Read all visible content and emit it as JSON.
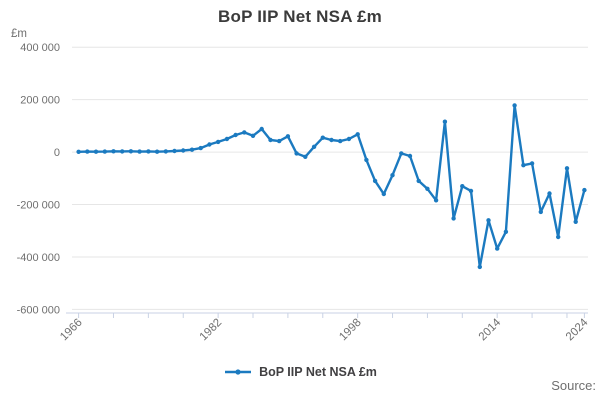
{
  "title": "BoP IIP Net NSA £m",
  "legend": {
    "label": "BoP IIP Net NSA £m"
  },
  "source": {
    "label": "Source:"
  },
  "axis": {
    "unit_label": "£m",
    "y_ticks": [
      {
        "value": 400000,
        "label": "400 000"
      },
      {
        "value": 200000,
        "label": "200 000"
      },
      {
        "value": 0,
        "label": "0"
      },
      {
        "value": -200000,
        "label": "-200 000"
      },
      {
        "value": -400000,
        "label": "-400 000"
      },
      {
        "value": -600000,
        "label": "-600 000"
      }
    ],
    "x_labeled_ticks": [
      1966,
      1982,
      1998,
      2014,
      2024
    ],
    "x_minor_tick_step_years": 4
  },
  "colors": {
    "line": "#1b7ac0",
    "title_text": "#3b3b3b",
    "axis_text": "#6f6f6f",
    "gridline": "#e6e6e6",
    "axis_line": "#c9d2e4",
    "legend_text": "#414042"
  },
  "chart_data": {
    "type": "line",
    "title": "BoP IIP Net NSA £m",
    "xlabel": "",
    "ylabel": "£m",
    "ylim": [
      -600000,
      400000
    ],
    "grid": "horizontal",
    "legend_position": "bottom",
    "x": [
      1966,
      1967,
      1968,
      1969,
      1970,
      1971,
      1972,
      1973,
      1974,
      1975,
      1976,
      1977,
      1978,
      1979,
      1980,
      1981,
      1982,
      1983,
      1984,
      1985,
      1986,
      1987,
      1988,
      1989,
      1990,
      1991,
      1992,
      1993,
      1994,
      1995,
      1996,
      1997,
      1998,
      1999,
      2000,
      2001,
      2002,
      2003,
      2004,
      2005,
      2006,
      2007,
      2008,
      2009,
      2010,
      2011,
      2012,
      2013,
      2014,
      2015,
      2016,
      2017,
      2018,
      2019,
      2020,
      2021,
      2022,
      2023,
      2024
    ],
    "series": [
      {
        "name": "BoP IIP Net NSA £m",
        "values": [
          1000,
          2000,
          1500,
          2000,
          3000,
          2500,
          3000,
          2000,
          2500,
          1500,
          2500,
          4000,
          6000,
          9000,
          15000,
          29000,
          39000,
          50000,
          65000,
          75000,
          62000,
          88000,
          46000,
          42000,
          60000,
          -5000,
          -18000,
          20000,
          55000,
          46000,
          42000,
          50000,
          68000,
          -30000,
          -110000,
          -160000,
          -88000,
          -5000,
          -15000,
          -110000,
          -140000,
          -184000,
          116000,
          -253000,
          -130000,
          -148000,
          -438000,
          -260000,
          -368000,
          -304000,
          178000,
          -50000,
          -43000,
          -228000,
          -158000,
          -324000,
          -62000,
          -266000,
          -145000
        ]
      }
    ]
  }
}
